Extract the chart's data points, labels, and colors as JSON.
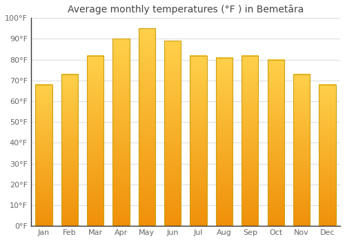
{
  "title": "Average monthly temperatures (°F ) in Bemetāra",
  "months": [
    "Jan",
    "Feb",
    "Mar",
    "Apr",
    "May",
    "Jun",
    "Jul",
    "Aug",
    "Sep",
    "Oct",
    "Nov",
    "Dec"
  ],
  "values": [
    68,
    73,
    82,
    90,
    95,
    89,
    82,
    81,
    82,
    80,
    73,
    68
  ],
  "bar_color_top": "#FFD04A",
  "bar_color_bottom": "#F0900A",
  "bar_edge_color": "#CCA010",
  "background_color": "#FFFFFF",
  "grid_color": "#DDDDDD",
  "ylim": [
    0,
    100
  ],
  "yticks": [
    0,
    10,
    20,
    30,
    40,
    50,
    60,
    70,
    80,
    90,
    100
  ],
  "ytick_labels": [
    "0°F",
    "10°F",
    "20°F",
    "30°F",
    "40°F",
    "50°F",
    "60°F",
    "70°F",
    "80°F",
    "90°F",
    "100°F"
  ],
  "title_fontsize": 10,
  "tick_fontsize": 8,
  "tick_color": "#666666",
  "figsize": [
    5.0,
    3.5
  ],
  "dpi": 100,
  "bar_width": 0.65
}
